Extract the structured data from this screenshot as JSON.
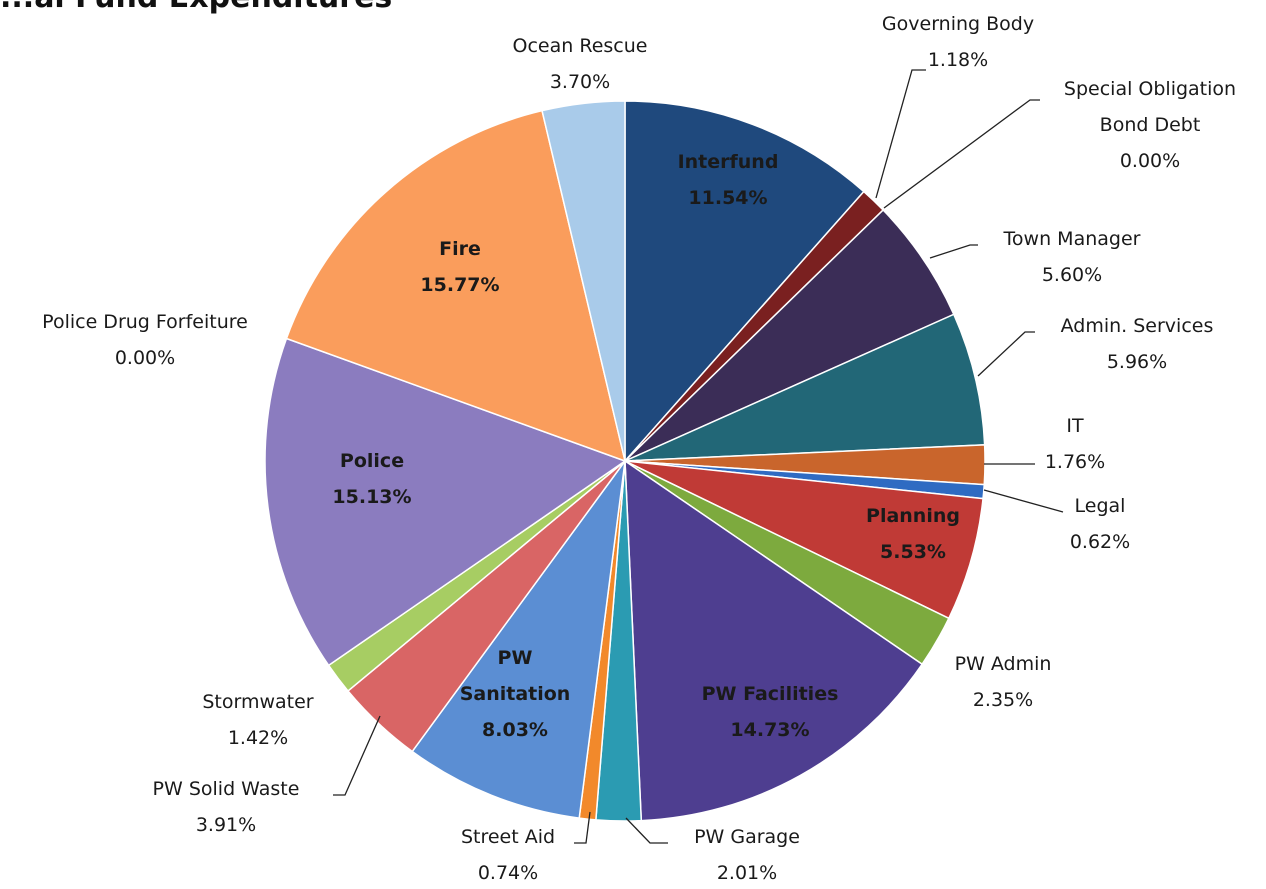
{
  "chart_data": {
    "type": "pie",
    "title": "...al Fund Expenditures",
    "slices": [
      {
        "name": "Interfund",
        "value": 11.54,
        "label": "11.54%",
        "color": "#1F497D"
      },
      {
        "name": "Governing Body",
        "value": 1.18,
        "label": "1.18%",
        "color": "#7A2020"
      },
      {
        "name": "Special Obligation Bond Debt",
        "value": 0.0,
        "label": "0.00%",
        "color": "#4A2A5C"
      },
      {
        "name": "Town Manager",
        "value": 5.6,
        "label": "5.60%",
        "color": "#3B2D57"
      },
      {
        "name": "Admin. Services",
        "value": 5.96,
        "label": "5.96%",
        "color": "#226777"
      },
      {
        "name": "IT",
        "value": 1.76,
        "label": "1.76%",
        "color": "#C9652C"
      },
      {
        "name": "Legal",
        "value": 0.62,
        "label": "0.62%",
        "color": "#2F6BC2"
      },
      {
        "name": "Planning",
        "value": 5.53,
        "label": "5.53%",
        "color": "#C03A36"
      },
      {
        "name": "PW Admin",
        "value": 2.35,
        "label": "2.35%",
        "color": "#7DAA3E"
      },
      {
        "name": "PW Facilities",
        "value": 14.73,
        "label": "14.73%",
        "color": "#4E3E90"
      },
      {
        "name": "PW Garage",
        "value": 2.01,
        "label": "2.01%",
        "color": "#2B9BB2"
      },
      {
        "name": "Street Aid",
        "value": 0.74,
        "label": "0.74%",
        "color": "#F2892B"
      },
      {
        "name": "PW Sanitation",
        "value": 8.03,
        "label": "8.03%",
        "color": "#5B8ED3"
      },
      {
        "name": "PW Solid Waste",
        "value": 3.91,
        "label": "3.91%",
        "color": "#D96565"
      },
      {
        "name": "Stormwater",
        "value": 1.42,
        "label": "1.42%",
        "color": "#A7CD63"
      },
      {
        "name": "Police",
        "value": 15.13,
        "label": "15.13%",
        "color": "#8B7CBF"
      },
      {
        "name": "Police Drug Forfeiture",
        "value": 0.0,
        "label": "0.00%",
        "color": "#6E5A9E"
      },
      {
        "name": "Fire",
        "value": 15.77,
        "label": "15.77%",
        "color": "#FA9D5C"
      },
      {
        "name": "Ocean Rescue",
        "value": 3.7,
        "label": "3.70%",
        "color": "#A9CBEA"
      }
    ]
  }
}
